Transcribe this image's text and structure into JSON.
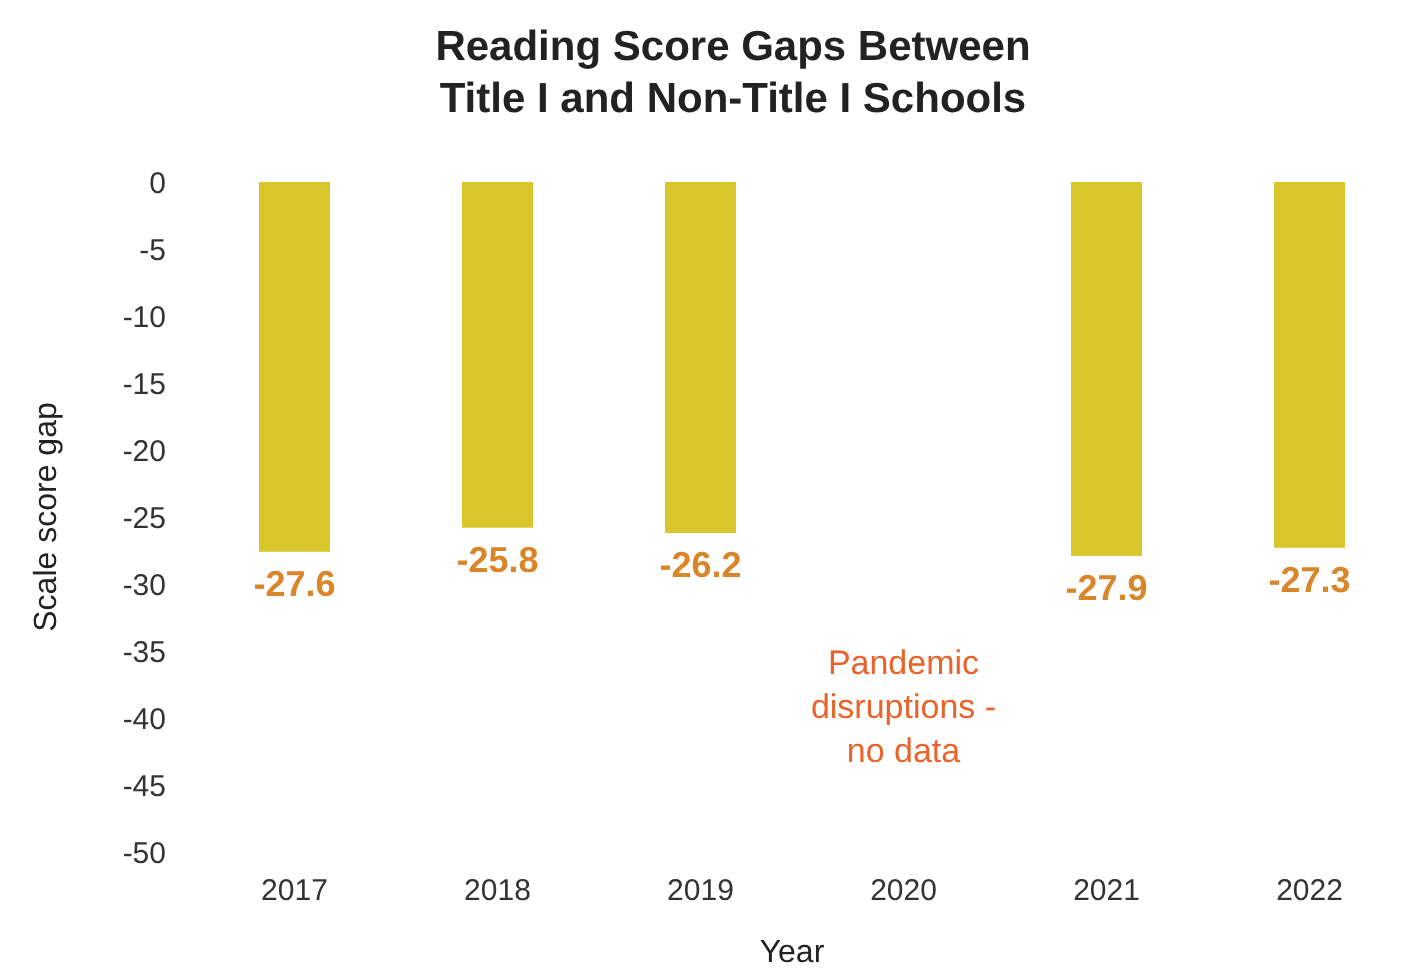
{
  "chart_data": {
    "type": "bar",
    "title": "Reading Score Gaps Between Title I and Non-Title I Schools",
    "xlabel": "Year",
    "ylabel": "Scale score gap",
    "categories": [
      "2017",
      "2018",
      "2019",
      "2020",
      "2021",
      "2022"
    ],
    "values": [
      -27.6,
      -25.8,
      -26.2,
      null,
      -27.9,
      -27.3
    ],
    "color": "#d9c62b",
    "ylim": [
      -50,
      0
    ],
    "yticks": [
      0,
      -5,
      -10,
      -15,
      -20,
      -25,
      -30,
      -35,
      -40,
      -45,
      -50
    ],
    "grid": false,
    "data_labels": true,
    "annotations": [
      "Pandemic disruptions - no data"
    ]
  }
}
